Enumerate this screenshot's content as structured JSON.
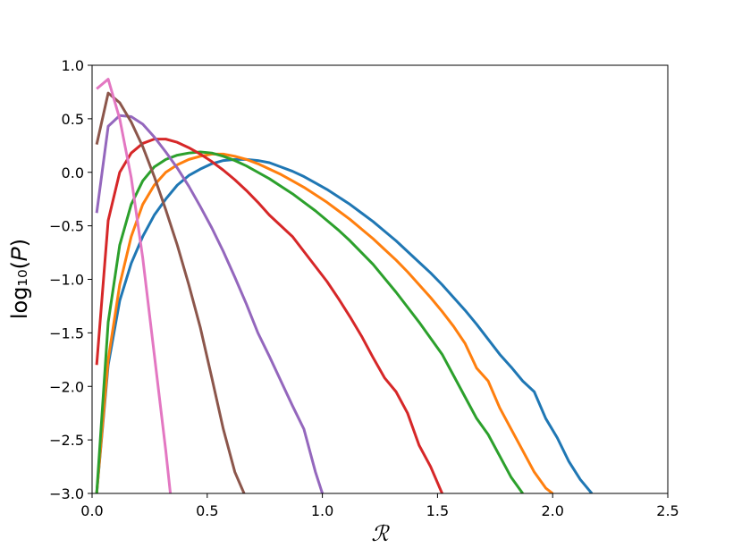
{
  "chart_data": {
    "type": "line",
    "xlabel": "ℛ",
    "ylabel": "log₁₀(𝑃)",
    "xlim": [
      0,
      2.5
    ],
    "ylim": [
      -3,
      1
    ],
    "xticks": [
      {
        "value": 0,
        "label": "0.0"
      },
      {
        "value": 0.5,
        "label": "0.5"
      },
      {
        "value": 1,
        "label": "1.0"
      },
      {
        "value": 1.5,
        "label": "1.5"
      },
      {
        "value": 2,
        "label": "2.0"
      },
      {
        "value": 2.5,
        "label": "2.5"
      }
    ],
    "yticks": [
      {
        "value": -3,
        "label": "−3.0"
      },
      {
        "value": -2.5,
        "label": "−2.5"
      },
      {
        "value": -2,
        "label": "−2.0"
      },
      {
        "value": -1.5,
        "label": "−1.5"
      },
      {
        "value": -1,
        "label": "−1.0"
      },
      {
        "value": -0.5,
        "label": "−0.5"
      },
      {
        "value": 0,
        "label": "0.0"
      },
      {
        "value": 0.5,
        "label": "0.5"
      },
      {
        "value": 1,
        "label": "1.0"
      }
    ],
    "series": [
      {
        "color": "#1f77b4",
        "x": [
          0.02,
          0.07,
          0.12,
          0.17,
          0.22,
          0.27,
          0.32,
          0.37,
          0.42,
          0.47,
          0.52,
          0.57,
          0.62,
          0.67,
          0.72,
          0.77,
          0.82,
          0.87,
          0.92,
          0.97,
          1.02,
          1.07,
          1.12,
          1.17,
          1.22,
          1.27,
          1.32,
          1.37,
          1.42,
          1.47,
          1.52,
          1.57,
          1.62,
          1.67,
          1.72,
          1.77,
          1.82,
          1.87,
          1.92,
          1.97,
          2.02,
          2.07,
          2.12,
          2.17
        ],
        "values": [
          -3.0,
          -1.8,
          -1.2,
          -0.85,
          -0.6,
          -0.4,
          -0.25,
          -0.12,
          -0.03,
          0.03,
          0.08,
          0.11,
          0.12,
          0.12,
          0.11,
          0.09,
          0.05,
          0.01,
          -0.04,
          -0.1,
          -0.16,
          -0.23,
          -0.3,
          -0.38,
          -0.46,
          -0.55,
          -0.64,
          -0.74,
          -0.84,
          -0.94,
          -1.05,
          -1.17,
          -1.29,
          -1.42,
          -1.56,
          -1.7,
          -1.82,
          -1.95,
          -2.05,
          -2.3,
          -2.48,
          -2.7,
          -2.87,
          -3.0
        ]
      },
      {
        "color": "#ff7f0e",
        "x": [
          0.02,
          0.07,
          0.12,
          0.17,
          0.22,
          0.27,
          0.32,
          0.37,
          0.42,
          0.47,
          0.52,
          0.57,
          0.62,
          0.67,
          0.72,
          0.77,
          0.82,
          0.87,
          0.92,
          0.97,
          1.02,
          1.07,
          1.12,
          1.17,
          1.22,
          1.27,
          1.32,
          1.37,
          1.42,
          1.47,
          1.52,
          1.57,
          1.62,
          1.67,
          1.72,
          1.77,
          1.82,
          1.87,
          1.92,
          1.97,
          2.0
        ],
        "values": [
          -3.0,
          -1.75,
          -1.05,
          -0.6,
          -0.3,
          -0.12,
          0.0,
          0.07,
          0.12,
          0.15,
          0.17,
          0.17,
          0.15,
          0.12,
          0.08,
          0.03,
          -0.02,
          -0.08,
          -0.14,
          -0.21,
          -0.28,
          -0.36,
          -0.44,
          -0.53,
          -0.62,
          -0.72,
          -0.82,
          -0.93,
          -1.05,
          -1.17,
          -1.3,
          -1.44,
          -1.6,
          -1.83,
          -1.95,
          -2.2,
          -2.4,
          -2.6,
          -2.8,
          -2.95,
          -3.0
        ]
      },
      {
        "color": "#2ca02c",
        "x": [
          0.02,
          0.07,
          0.12,
          0.17,
          0.22,
          0.27,
          0.32,
          0.37,
          0.42,
          0.47,
          0.52,
          0.57,
          0.62,
          0.67,
          0.72,
          0.77,
          0.82,
          0.87,
          0.92,
          0.97,
          1.02,
          1.07,
          1.12,
          1.17,
          1.22,
          1.27,
          1.32,
          1.37,
          1.42,
          1.47,
          1.52,
          1.57,
          1.62,
          1.67,
          1.72,
          1.77,
          1.82,
          1.87
        ],
        "values": [
          -3.0,
          -1.4,
          -0.68,
          -0.3,
          -0.08,
          0.05,
          0.12,
          0.16,
          0.18,
          0.19,
          0.18,
          0.15,
          0.11,
          0.06,
          0.0,
          -0.06,
          -0.13,
          -0.2,
          -0.28,
          -0.36,
          -0.45,
          -0.54,
          -0.64,
          -0.75,
          -0.86,
          -0.99,
          -1.12,
          -1.26,
          -1.4,
          -1.55,
          -1.7,
          -1.9,
          -2.1,
          -2.3,
          -2.45,
          -2.65,
          -2.85,
          -3.0
        ]
      },
      {
        "color": "#d62728",
        "x": [
          0.02,
          0.07,
          0.12,
          0.17,
          0.22,
          0.27,
          0.32,
          0.37,
          0.42,
          0.47,
          0.52,
          0.57,
          0.62,
          0.67,
          0.72,
          0.77,
          0.82,
          0.87,
          0.92,
          0.97,
          1.02,
          1.07,
          1.12,
          1.17,
          1.22,
          1.27,
          1.32,
          1.37,
          1.42,
          1.47,
          1.52
        ],
        "values": [
          -1.8,
          -0.45,
          0.0,
          0.18,
          0.27,
          0.31,
          0.31,
          0.28,
          0.23,
          0.17,
          0.1,
          0.02,
          -0.07,
          -0.17,
          -0.28,
          -0.4,
          -0.5,
          -0.6,
          -0.74,
          -0.88,
          -1.02,
          -1.18,
          -1.35,
          -1.53,
          -1.73,
          -1.92,
          -2.05,
          -2.25,
          -2.55,
          -2.75,
          -3.0
        ]
      },
      {
        "color": "#9467bd",
        "x": [
          0.02,
          0.07,
          0.12,
          0.17,
          0.22,
          0.27,
          0.32,
          0.37,
          0.42,
          0.47,
          0.52,
          0.57,
          0.62,
          0.67,
          0.72,
          0.77,
          0.82,
          0.87,
          0.92,
          0.97,
          1.0
        ],
        "values": [
          -0.38,
          0.43,
          0.53,
          0.52,
          0.45,
          0.33,
          0.19,
          0.04,
          -0.13,
          -0.32,
          -0.52,
          -0.74,
          -0.98,
          -1.23,
          -1.5,
          -1.72,
          -1.95,
          -2.18,
          -2.4,
          -2.8,
          -3.0
        ]
      },
      {
        "color": "#8c564b",
        "x": [
          0.02,
          0.07,
          0.12,
          0.17,
          0.22,
          0.27,
          0.32,
          0.37,
          0.42,
          0.47,
          0.52,
          0.57,
          0.62,
          0.66
        ],
        "values": [
          0.26,
          0.74,
          0.65,
          0.47,
          0.24,
          -0.04,
          -0.35,
          -0.68,
          -1.05,
          -1.45,
          -1.92,
          -2.4,
          -2.8,
          -3.0
        ]
      },
      {
        "color": "#e377c2",
        "x": [
          0.02,
          0.07,
          0.12,
          0.17,
          0.22,
          0.27,
          0.32,
          0.34
        ],
        "values": [
          0.78,
          0.87,
          0.5,
          -0.05,
          -0.8,
          -1.7,
          -2.6,
          -3.0
        ]
      }
    ]
  }
}
